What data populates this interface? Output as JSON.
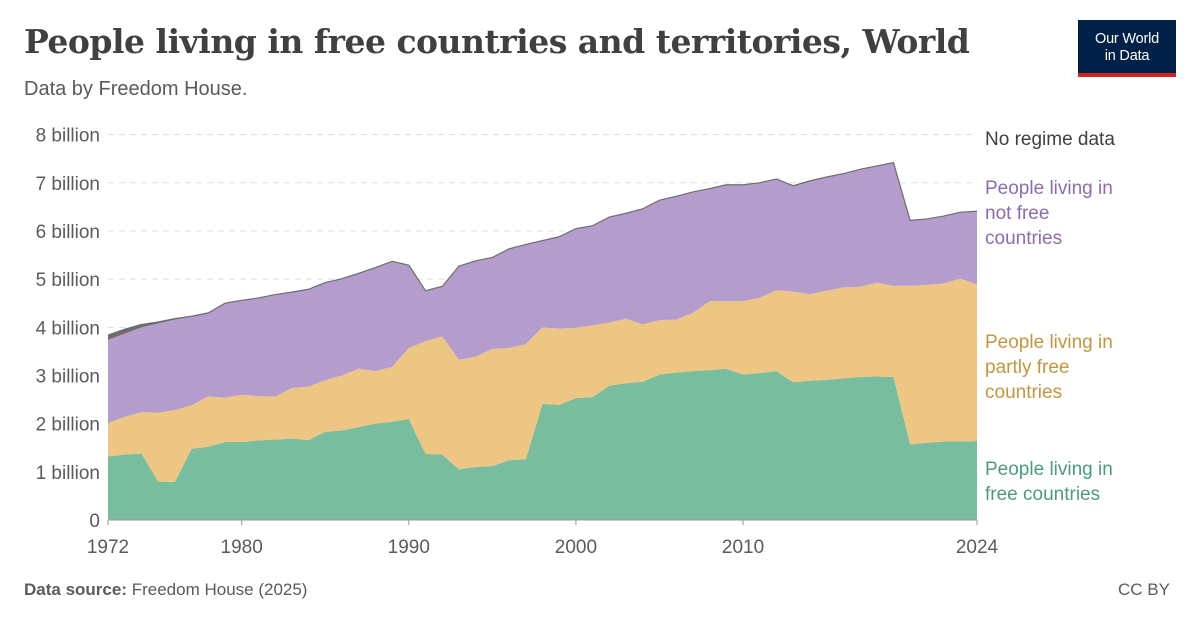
{
  "header": {
    "title": "People living in free countries and territories, World",
    "subtitle": "Data by Freedom House."
  },
  "logo": {
    "line1": "Our World",
    "line2": "in Data"
  },
  "footer": {
    "source_label": "Data source:",
    "source_text": "Freedom House (2025)",
    "license": "CC BY"
  },
  "chart_data": {
    "type": "area",
    "stacked": true,
    "x": [
      1972,
      1973,
      1974,
      1975,
      1976,
      1977,
      1978,
      1979,
      1980,
      1981,
      1982,
      1983,
      1984,
      1985,
      1986,
      1987,
      1988,
      1989,
      1990,
      1991,
      1992,
      1993,
      1994,
      1995,
      1996,
      1997,
      1998,
      1999,
      2000,
      2001,
      2002,
      2003,
      2004,
      2005,
      2006,
      2007,
      2008,
      2009,
      2010,
      2011,
      2012,
      2013,
      2014,
      2015,
      2016,
      2017,
      2018,
      2019,
      2020,
      2021,
      2022,
      2023,
      2024
    ],
    "x_ticks": [
      "1972",
      "1980",
      "1990",
      "2000",
      "2010",
      "2024"
    ],
    "x_tick_values": [
      1972,
      1980,
      1990,
      2000,
      2010,
      2024
    ],
    "ylim": [
      0,
      8200000000
    ],
    "y_ticks": [
      "0",
      "1 billion",
      "2 billion",
      "3 billion",
      "4 billion",
      "5 billion",
      "6 billion",
      "7 billion",
      "8 billion"
    ],
    "y_tick_values": [
      0,
      1000000000,
      2000000000,
      3000000000,
      4000000000,
      5000000000,
      6000000000,
      7000000000,
      8000000000
    ],
    "grid": "horizontal dashed",
    "series": [
      {
        "name": "People living in free countries",
        "label_lines": [
          "People living in",
          "free countries"
        ],
        "color": "#78bd9e",
        "values": [
          1.32,
          1.36,
          1.38,
          0.8,
          0.79,
          1.48,
          1.52,
          1.62,
          1.62,
          1.65,
          1.67,
          1.69,
          1.66,
          1.83,
          1.86,
          1.93,
          2.0,
          2.04,
          2.1,
          1.37,
          1.36,
          1.05,
          1.1,
          1.12,
          1.24,
          1.26,
          2.41,
          2.39,
          2.53,
          2.55,
          2.79,
          2.84,
          2.87,
          3.02,
          3.06,
          3.09,
          3.11,
          3.14,
          3.02,
          3.05,
          3.09,
          2.86,
          2.89,
          2.91,
          2.94,
          2.97,
          2.98,
          2.97,
          1.57,
          1.6,
          1.63,
          1.63,
          1.64
        ]
      },
      {
        "name": "People living in partly free countries",
        "label_lines": [
          "People living in",
          "partly free",
          "countries"
        ],
        "color": "#edc684",
        "values": [
          0.69,
          0.78,
          0.86,
          1.43,
          1.49,
          0.9,
          1.04,
          0.92,
          0.98,
          0.92,
          0.89,
          1.05,
          1.11,
          1.07,
          1.14,
          1.21,
          1.09,
          1.14,
          1.47,
          2.34,
          2.45,
          2.28,
          2.29,
          2.43,
          2.33,
          2.39,
          1.59,
          1.58,
          1.46,
          1.49,
          1.31,
          1.34,
          1.19,
          1.13,
          1.1,
          1.21,
          1.43,
          1.4,
          1.52,
          1.56,
          1.68,
          1.88,
          1.8,
          1.85,
          1.89,
          1.87,
          1.95,
          1.89,
          3.29,
          3.28,
          3.28,
          3.38,
          3.25
        ]
      },
      {
        "name": "People living in not free countries",
        "label_lines": [
          "People living in",
          "not free",
          "countries"
        ],
        "color": "#b49dcc",
        "values": [
          1.73,
          1.73,
          1.76,
          1.85,
          1.88,
          1.85,
          1.74,
          1.96,
          1.96,
          2.04,
          2.12,
          1.99,
          2.02,
          2.03,
          2.01,
          1.98,
          2.15,
          2.19,
          1.72,
          1.05,
          1.04,
          1.94,
          1.99,
          1.9,
          2.06,
          2.07,
          1.8,
          1.91,
          2.06,
          2.07,
          2.19,
          2.19,
          2.4,
          2.49,
          2.56,
          2.51,
          2.34,
          2.42,
          2.42,
          2.39,
          2.31,
          2.2,
          2.35,
          2.36,
          2.36,
          2.44,
          2.42,
          2.56,
          1.36,
          1.37,
          1.4,
          1.38,
          1.52
        ]
      },
      {
        "name": "No regime data",
        "label_lines": [
          "No regime data"
        ],
        "color": "#6d6d6d",
        "values": [
          0.1,
          0.09,
          0.06,
          0.03,
          0.02,
          0,
          0,
          0,
          0,
          0,
          0,
          0,
          0,
          0,
          0,
          0,
          0,
          0,
          0,
          0,
          0,
          0,
          0,
          0,
          0,
          0,
          0,
          0,
          0,
          0,
          0,
          0,
          0,
          0,
          0,
          0,
          0,
          0,
          0,
          0,
          0,
          0,
          0,
          0,
          0,
          0,
          0,
          0,
          0,
          0,
          0,
          0,
          0
        ],
        "values_unit": "billion"
      }
    ],
    "values_unit": "billion"
  }
}
